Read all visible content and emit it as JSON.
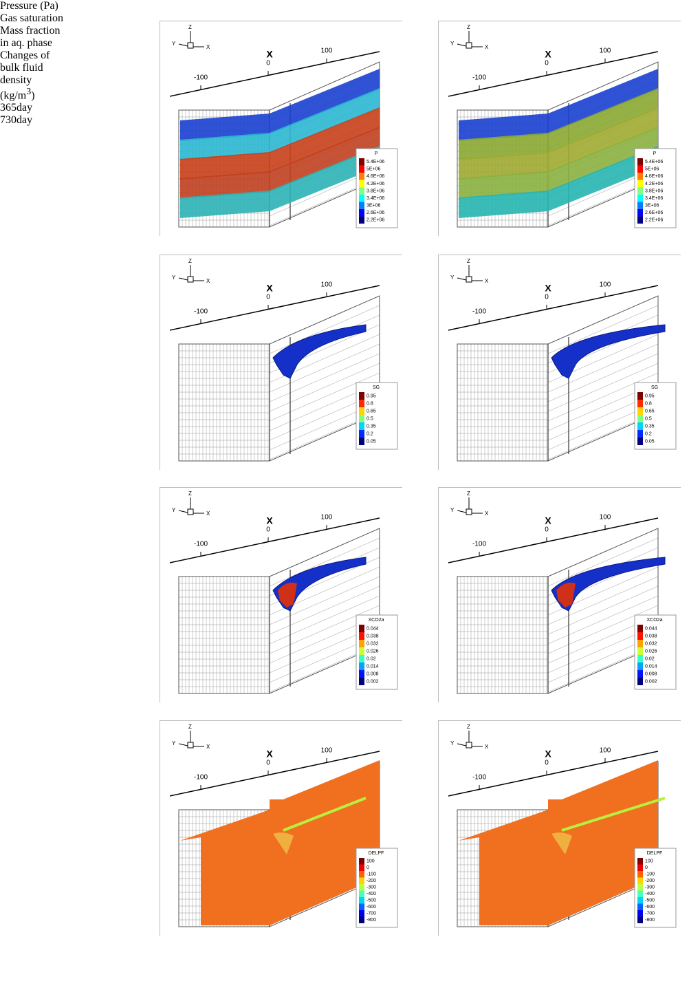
{
  "rows": [
    {
      "label": [
        "Pressure (Pa)"
      ],
      "kind": "pressure",
      "legend": {
        "title": "P",
        "labels": [
          "5.4E+06",
          "5E+06",
          "4.6E+06",
          "4.2E+06",
          "3.8E+06",
          "3.4E+06",
          "3E+06",
          "2.6E+06",
          "2.2E+06"
        ]
      }
    },
    {
      "label": [
        "Gas saturation"
      ],
      "kind": "gas",
      "legend": {
        "title": "SG",
        "labels": [
          "0.95",
          "0.8",
          "0.65",
          "0.5",
          "0.35",
          "0.2",
          "0.05"
        ]
      }
    },
    {
      "label": [
        "Mass fraction",
        "in aq. phase"
      ],
      "kind": "mass",
      "legend": {
        "title": "XCO2a",
        "labels": [
          "0.044",
          "0.038",
          "0.032",
          "0.026",
          "0.02",
          "0.014",
          "0.008",
          "0.002"
        ]
      }
    },
    {
      "label": [
        "Changes of",
        "bulk fluid",
        "density"
      ],
      "unit": {
        "text": "(kg/m",
        "sup": "3",
        "end": ")"
      },
      "kind": "density",
      "legend": {
        "title": "DELPF",
        "labels": [
          "100",
          "0",
          "-100",
          "-200",
          "-300",
          "-400",
          "-500",
          "-600",
          "-700",
          "-800"
        ]
      }
    }
  ],
  "columns": [
    "365day",
    "730day"
  ],
  "axes": {
    "title": "X",
    "ticks": [
      "-100",
      "0",
      "100"
    ],
    "triad": {
      "z": "Z",
      "y": "Y",
      "x": "X"
    }
  }
}
